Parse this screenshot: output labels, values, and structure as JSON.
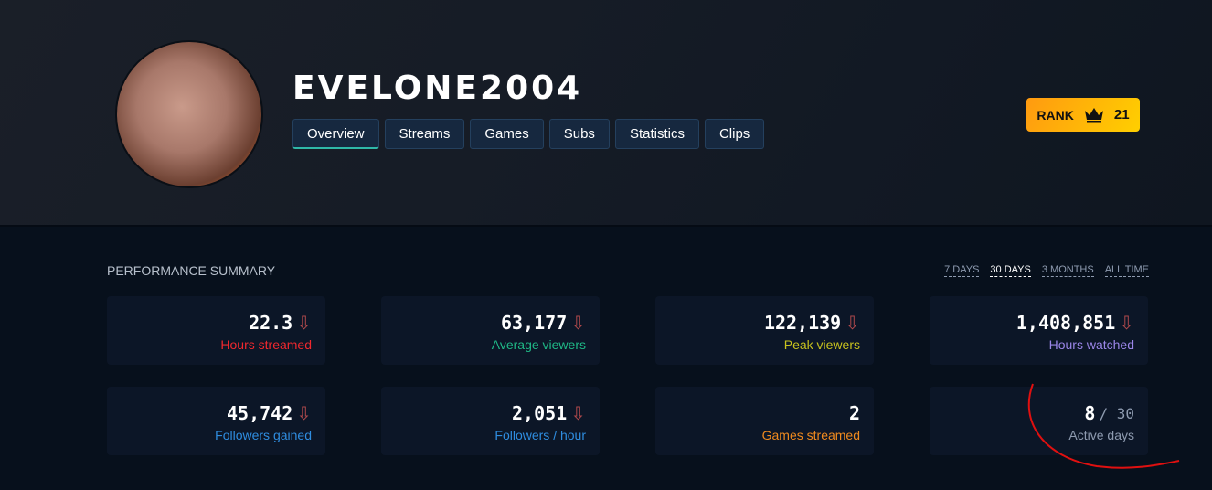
{
  "channel": {
    "name": "EVELONE2004"
  },
  "tabs": [
    {
      "label": "Overview",
      "active": true
    },
    {
      "label": "Streams"
    },
    {
      "label": "Games"
    },
    {
      "label": "Subs"
    },
    {
      "label": "Statistics"
    },
    {
      "label": "Clips"
    }
  ],
  "rank": {
    "label": "RANK",
    "icon": "crown-icon",
    "value": "21"
  },
  "summary": {
    "title": "PERFORMANCE SUMMARY",
    "ranges": [
      "7 DAYS",
      "30 DAYS",
      "3 MONTHS",
      "ALL TIME"
    ],
    "active_range": "30 DAYS",
    "cards": [
      {
        "value": "22.3",
        "label": "Hours streamed",
        "color": "#f0282e",
        "trend": "down"
      },
      {
        "value": "63,177",
        "label": "Average viewers",
        "color": "#1fb886",
        "trend": "down"
      },
      {
        "value": "122,139",
        "label": "Peak viewers",
        "color": "#c8c21e",
        "trend": "down"
      },
      {
        "value": "1,408,851",
        "label": "Hours watched",
        "color": "#9b86e8",
        "trend": "down"
      },
      {
        "value": "45,742",
        "label": "Followers gained",
        "color": "#2f8de0",
        "trend": "down"
      },
      {
        "value": "2,051",
        "label": "Followers / hour",
        "color": "#2f8de0",
        "trend": "down"
      },
      {
        "value": "2",
        "label": "Games streamed",
        "color": "#f08a1e"
      },
      {
        "value": "8",
        "of": "/ 30",
        "label": "Active days",
        "color": "#8e9bb0"
      }
    ],
    "trend_arrow": "⇩"
  }
}
